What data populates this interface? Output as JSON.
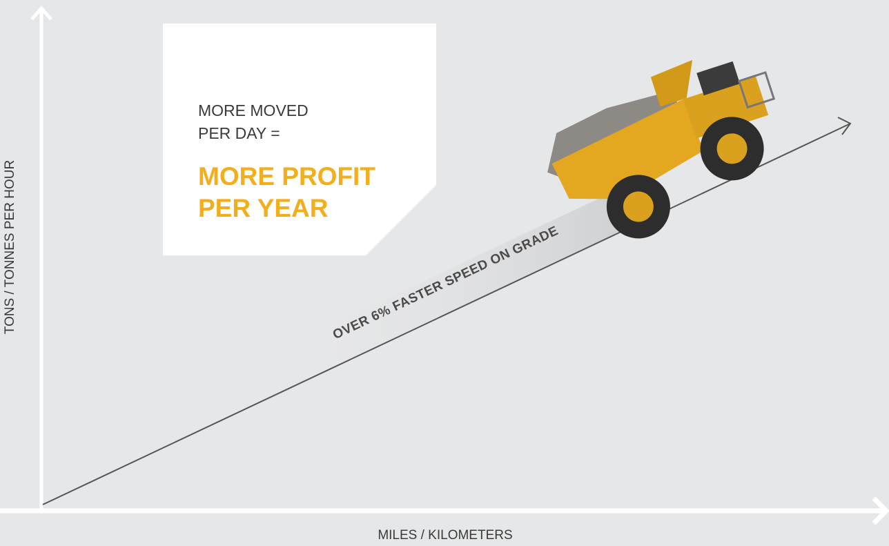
{
  "y_axis_label": "TONS / TONNES PER HOUR",
  "x_axis_label": "MILES / KILOMETERS",
  "callout": {
    "lines": [
      "MORE MOVED",
      "PER DAY ="
    ],
    "highlight": [
      "MORE PROFIT",
      "PER YEAR"
    ]
  },
  "slope_label": "OVER 6% FASTER SPEED ON GRADE"
}
